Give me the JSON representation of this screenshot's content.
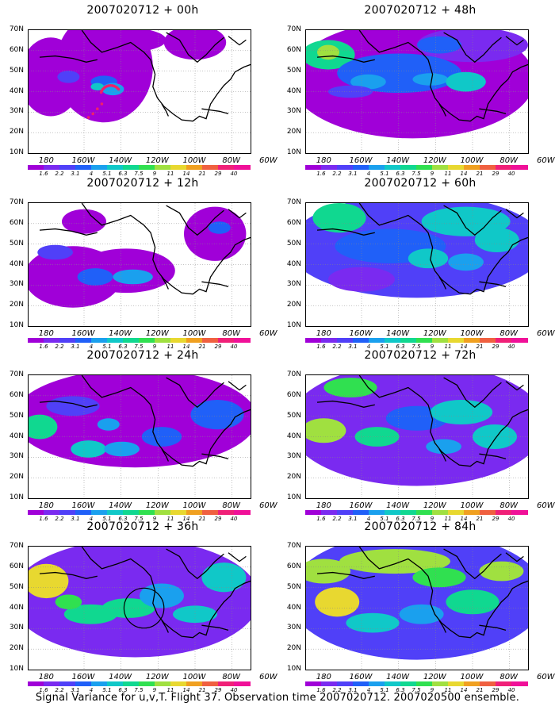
{
  "caption": "Signal Variance for u,v,T. Flight 37. Observation time 2007020712. 2007020500 ensemble.",
  "y_ticks": [
    "70N",
    "60N",
    "50N",
    "40N",
    "30N",
    "20N",
    "10N"
  ],
  "x_ticks": [
    "180",
    "160W",
    "140W",
    "120W",
    "100W",
    "80W",
    "60W"
  ],
  "colorbar": {
    "labels": [
      "1.6",
      "2.2",
      "3.1",
      "4",
      "5.1",
      "6.3",
      "7.5",
      "9",
      "11",
      "14",
      "21",
      "29",
      "40"
    ],
    "colors": [
      "#a000d8",
      "#7a2af0",
      "#5040f8",
      "#2060f8",
      "#1aa0ee",
      "#10c8c8",
      "#10d890",
      "#30e050",
      "#a0e040",
      "#e8d830",
      "#f0a020",
      "#f06040",
      "#f02078",
      "#f01098"
    ]
  },
  "chart_data": {
    "type": "heatmap",
    "map_extent": {
      "lon": [
        "180",
        "60W"
      ],
      "lat": [
        "10N",
        "70N"
      ]
    },
    "panels": [
      {
        "title": "2007020712 + 00h",
        "lead": "00h"
      },
      {
        "title": "2007020712 + 48h",
        "lead": "48h"
      },
      {
        "title": "2007020712 + 12h",
        "lead": "12h"
      },
      {
        "title": "2007020712 + 60h",
        "lead": "60h"
      },
      {
        "title": "2007020712 + 24h",
        "lead": "24h"
      },
      {
        "title": "2007020712 + 72h",
        "lead": "72h"
      },
      {
        "title": "2007020712 + 36h",
        "lead": "36h"
      },
      {
        "title": "2007020712 + 84h",
        "lead": "84h"
      }
    ]
  }
}
